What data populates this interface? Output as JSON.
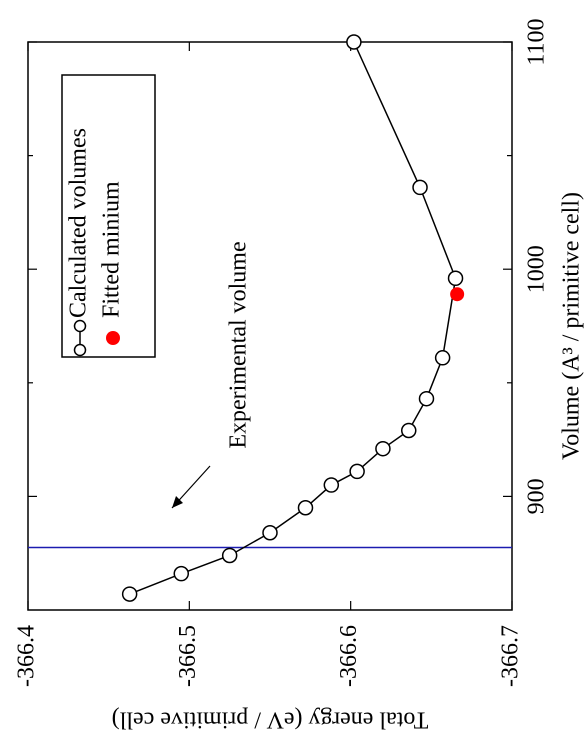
{
  "chart_data": {
    "type": "line",
    "x_label": "Volume (A³ / primitive cell)",
    "y_label": "Total energy (eV / primitive cell)",
    "xlim": [
      850,
      1100
    ],
    "xticks": [
      900,
      1000,
      1100
    ],
    "xminor_ticks": [
      950,
      1050
    ],
    "ylim": [
      -366.4,
      -366.7
    ],
    "yticks": [
      -366.4,
      -366.5,
      -366.6,
      -366.7
    ],
    "series": [
      {
        "name": "Calculated volumes",
        "color": "#000000",
        "marker": "open-circle",
        "x": [
          857,
          866,
          874,
          884,
          895,
          905,
          911,
          921,
          929,
          943,
          961,
          996,
          1036,
          1100
        ],
        "values": [
          -366.463,
          -366.495,
          -366.525,
          -366.55,
          -366.572,
          -366.588,
          -366.604,
          -366.62,
          -366.636,
          -366.647,
          -366.657,
          -366.665,
          -366.643,
          -366.602
        ]
      },
      {
        "name": "Fitted minium",
        "color": "#ff0000",
        "marker": "filled-circle",
        "x": [
          989
        ],
        "values": [
          -366.666
        ]
      }
    ],
    "reference_line": {
      "x": 877.5,
      "color": "#1c1cb0"
    },
    "annotation": "Experimental volume",
    "legend": "top-left"
  }
}
